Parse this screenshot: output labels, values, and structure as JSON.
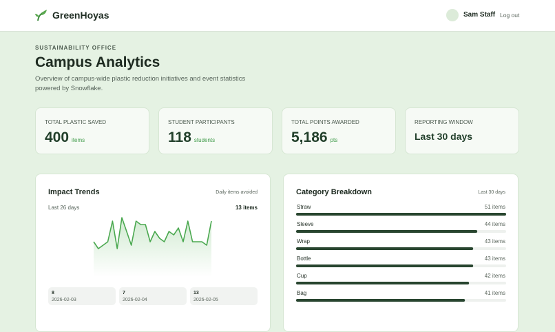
{
  "header": {
    "brand": "GreenHoyas",
    "user": "Sam Staff",
    "logout": "Log out"
  },
  "hero": {
    "eyebrow": "SUSTAINABILITY OFFICE",
    "title": "Campus Analytics",
    "description": "Overview of campus-wide plastic reduction initiatives and event statistics powered by Snowflake."
  },
  "stats": [
    {
      "label": "TOTAL PLASTIC SAVED",
      "value": 400,
      "unit": "items"
    },
    {
      "label": "STUDENT PARTICIPANTS",
      "value": 118,
      "unit": "students"
    },
    {
      "label": "TOTAL POINTS AWARDED",
      "value": "5,186",
      "unit": "pts"
    },
    {
      "label": "REPORTING WINDOW",
      "value": "Last 30 days"
    }
  ],
  "trends": {
    "title": "Impact Trends",
    "note": "Daily items avoided",
    "range": "Last 26 days",
    "peak": "13 items",
    "values": [
      6,
      4,
      5,
      6,
      12,
      4,
      13,
      9,
      5,
      12,
      11,
      11,
      6,
      9,
      7,
      6,
      9,
      8,
      10,
      6,
      12,
      6,
      6,
      6,
      5,
      12
    ],
    "days": [
      {
        "count": 8,
        "date": "2026-02-03"
      },
      {
        "count": 7,
        "date": "2026-02-04"
      },
      {
        "count": 13,
        "date": "2026-02-05"
      }
    ]
  },
  "categories": {
    "title": "Category Breakdown",
    "note": "Last 30 days",
    "names": [
      "Straw",
      "Sleeve",
      "Wrap",
      "Bottle",
      "Cup",
      "Bag"
    ],
    "values": [
      51,
      44,
      43,
      43,
      42,
      41
    ],
    "value_labels": [
      "51 items",
      "44 items",
      "43 items",
      "43 items",
      "42 items",
      "41 items"
    ]
  }
}
